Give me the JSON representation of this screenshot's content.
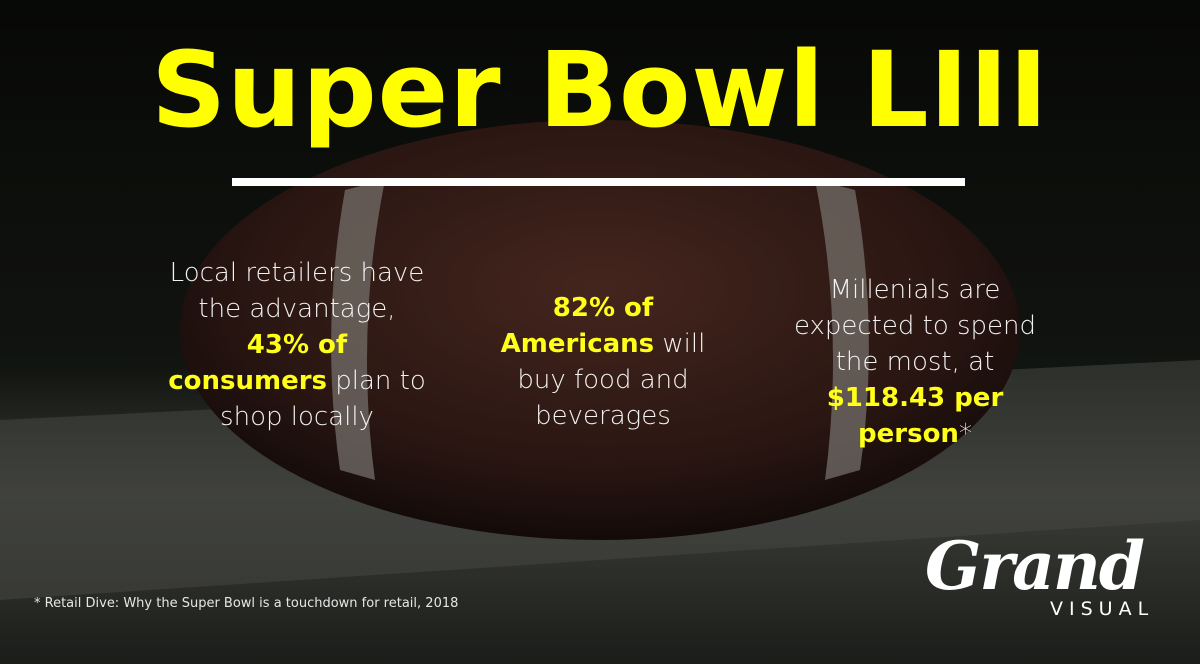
{
  "title": "Super Bowl LIII",
  "stats": [
    {
      "segments": [
        {
          "text": "Local retailers have the advantage, "
        },
        {
          "text": "43% of consumers",
          "bold": true
        },
        {
          "text": " plan to shop locally"
        }
      ]
    },
    {
      "segments": [
        {
          "text": "82% of Americans",
          "bold": true
        },
        {
          "text": " will buy food and beverages"
        }
      ]
    },
    {
      "segments": [
        {
          "text": "Millenials are expected to spend the most, at "
        },
        {
          "text": "$118.43 per person",
          "bold": true
        },
        {
          "text": "*"
        }
      ]
    }
  ],
  "footnote": "* Retail Dive: Why the Super Bowl is a touchdown for retail, 2018",
  "logo": {
    "name": "Grand",
    "subtitle": "VISUAL"
  }
}
